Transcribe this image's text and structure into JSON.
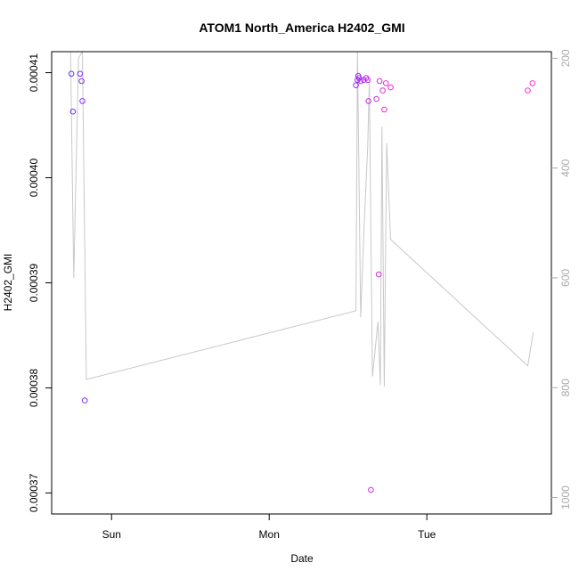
{
  "chart_data": {
    "type": "scatter",
    "title": "ATOM1 North_America H2402_GMI",
    "xlabel": "Date",
    "ylabel": "H2402_GMI",
    "x_ticks": [
      "Sun",
      "Mon",
      "Tue"
    ],
    "x_tick_values": [
      1.0,
      2.0,
      3.0
    ],
    "xlim": [
      0.62,
      3.79
    ],
    "ylim": [
      0.000368,
      0.000412
    ],
    "y_ticks": [
      "0.00037",
      "0.00038",
      "0.00039",
      "0.00040",
      "0.00041"
    ],
    "y_tick_values": [
      0.00037,
      0.00038,
      0.00039,
      0.0004,
      0.00041
    ],
    "right_axis": {
      "ylim": [
        1030,
        188
      ],
      "ticks": [
        "200",
        "400",
        "600",
        "800",
        "1000"
      ],
      "tick_values": [
        200,
        400,
        600,
        800,
        1000
      ],
      "color": "#aaaaaa"
    },
    "grid": false,
    "series": [
      {
        "kind": "points",
        "color_start": "#6a2cff",
        "color_end": "#ff2cd2",
        "points": [
          [
            0.745,
            0.0004099
          ],
          [
            0.755,
            0.0004063
          ],
          [
            0.8,
            0.0004099
          ],
          [
            0.81,
            0.0004092
          ],
          [
            0.815,
            0.0004073
          ],
          [
            0.83,
            0.0003788
          ],
          [
            2.55,
            0.0004088
          ],
          [
            2.56,
            0.0004093
          ],
          [
            2.565,
            0.0004097
          ],
          [
            2.57,
            0.0004095
          ],
          [
            2.58,
            0.0004092
          ],
          [
            2.6,
            0.0004093
          ],
          [
            2.615,
            0.0004095
          ],
          [
            2.625,
            0.0004093
          ],
          [
            2.63,
            0.0004073
          ],
          [
            2.645,
            0.0003703
          ],
          [
            2.68,
            0.0004075
          ],
          [
            2.695,
            0.0003908
          ],
          [
            2.7,
            0.0004092
          ],
          [
            2.72,
            0.0004083
          ],
          [
            2.73,
            0.0004065
          ],
          [
            2.74,
            0.000409
          ],
          [
            2.77,
            0.0004086
          ],
          [
            3.64,
            0.0004083
          ],
          [
            3.67,
            0.000409
          ]
        ]
      },
      {
        "kind": "line",
        "axis": "right",
        "color": "#c8c8c8",
        "points": [
          [
            0.725,
            100
          ],
          [
            0.74,
            175
          ],
          [
            0.76,
            600
          ],
          [
            0.79,
            200
          ],
          [
            0.815,
            120
          ],
          [
            0.84,
            785
          ],
          [
            2.55,
            660
          ],
          [
            2.56,
            120
          ],
          [
            2.58,
            672
          ],
          [
            2.6,
            520
          ],
          [
            2.625,
            360
          ],
          [
            2.635,
            240
          ],
          [
            2.655,
            780
          ],
          [
            2.69,
            680
          ],
          [
            2.705,
            795
          ],
          [
            2.715,
            325
          ],
          [
            2.73,
            798
          ],
          [
            2.745,
            355
          ],
          [
            2.77,
            530
          ],
          [
            3.64,
            760
          ],
          [
            3.675,
            700
          ]
        ]
      }
    ]
  }
}
